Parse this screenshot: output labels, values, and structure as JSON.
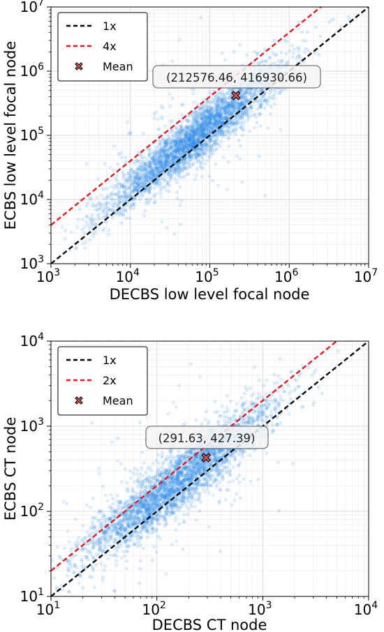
{
  "chart_data": [
    {
      "type": "scatter",
      "xlabel": "DECBS low level focal node",
      "ylabel": "ECBS low level focal node",
      "x_scale": "log",
      "y_scale": "log",
      "xlim": [
        1000,
        10000000
      ],
      "ylim": [
        1000,
        10000000
      ],
      "grid": true,
      "legend_position": "top-left",
      "x_ticks": [
        {
          "value": 1000,
          "base": "10",
          "exp": "3"
        },
        {
          "value": 10000,
          "base": "10",
          "exp": "4"
        },
        {
          "value": 100000,
          "base": "10",
          "exp": "5"
        },
        {
          "value": 1000000,
          "base": "10",
          "exp": "6"
        },
        {
          "value": 10000000,
          "base": "10",
          "exp": "7"
        }
      ],
      "y_ticks": [
        {
          "value": 1000,
          "base": "10",
          "exp": "3"
        },
        {
          "value": 10000,
          "base": "10",
          "exp": "4"
        },
        {
          "value": 100000,
          "base": "10",
          "exp": "5"
        },
        {
          "value": 1000000,
          "base": "10",
          "exp": "6"
        },
        {
          "value": 10000000,
          "base": "10",
          "exp": "7"
        }
      ],
      "reference_lines": [
        {
          "name": "1x",
          "factor": 1,
          "color": "#000000"
        },
        {
          "name": "4x",
          "factor": 4,
          "color": "#e8161b"
        }
      ],
      "mean": {
        "name": "Mean",
        "x": 212576.46,
        "y": 416930.66,
        "label": "(212576.46, 416930.66)"
      },
      "scatter_color": "#2e8be8",
      "point_cloud": {
        "count": 3200,
        "center_log_x": 4.8,
        "center_log_y": 4.95,
        "spread_along": 0.55,
        "spread_across": 0.13,
        "seed": 11
      }
    },
    {
      "type": "scatter",
      "xlabel": "DECBS CT node",
      "ylabel": "ECBS CT node",
      "x_scale": "log",
      "y_scale": "log",
      "xlim": [
        10,
        10000
      ],
      "ylim": [
        10,
        10000
      ],
      "grid": true,
      "legend_position": "top-left",
      "x_ticks": [
        {
          "value": 10,
          "base": "10",
          "exp": "1"
        },
        {
          "value": 100,
          "base": "10",
          "exp": "2"
        },
        {
          "value": 1000,
          "base": "10",
          "exp": "3"
        },
        {
          "value": 10000,
          "base": "10",
          "exp": "4"
        }
      ],
      "y_ticks": [
        {
          "value": 10,
          "base": "10",
          "exp": "1"
        },
        {
          "value": 100,
          "base": "10",
          "exp": "2"
        },
        {
          "value": 1000,
          "base": "10",
          "exp": "3"
        },
        {
          "value": 10000,
          "base": "10",
          "exp": "4"
        }
      ],
      "reference_lines": [
        {
          "name": "1x",
          "factor": 1,
          "color": "#000000"
        },
        {
          "name": "2x",
          "factor": 2,
          "color": "#e8161b"
        }
      ],
      "mean": {
        "name": "Mean",
        "x": 291.63,
        "y": 427.39,
        "label": "(291.63, 427.39)"
      },
      "scatter_color": "#2e8be8",
      "point_cloud": {
        "count": 3200,
        "center_log_x": 2.2,
        "center_log_y": 2.35,
        "spread_along": 0.45,
        "spread_across": 0.12,
        "seed": 23
      }
    }
  ]
}
